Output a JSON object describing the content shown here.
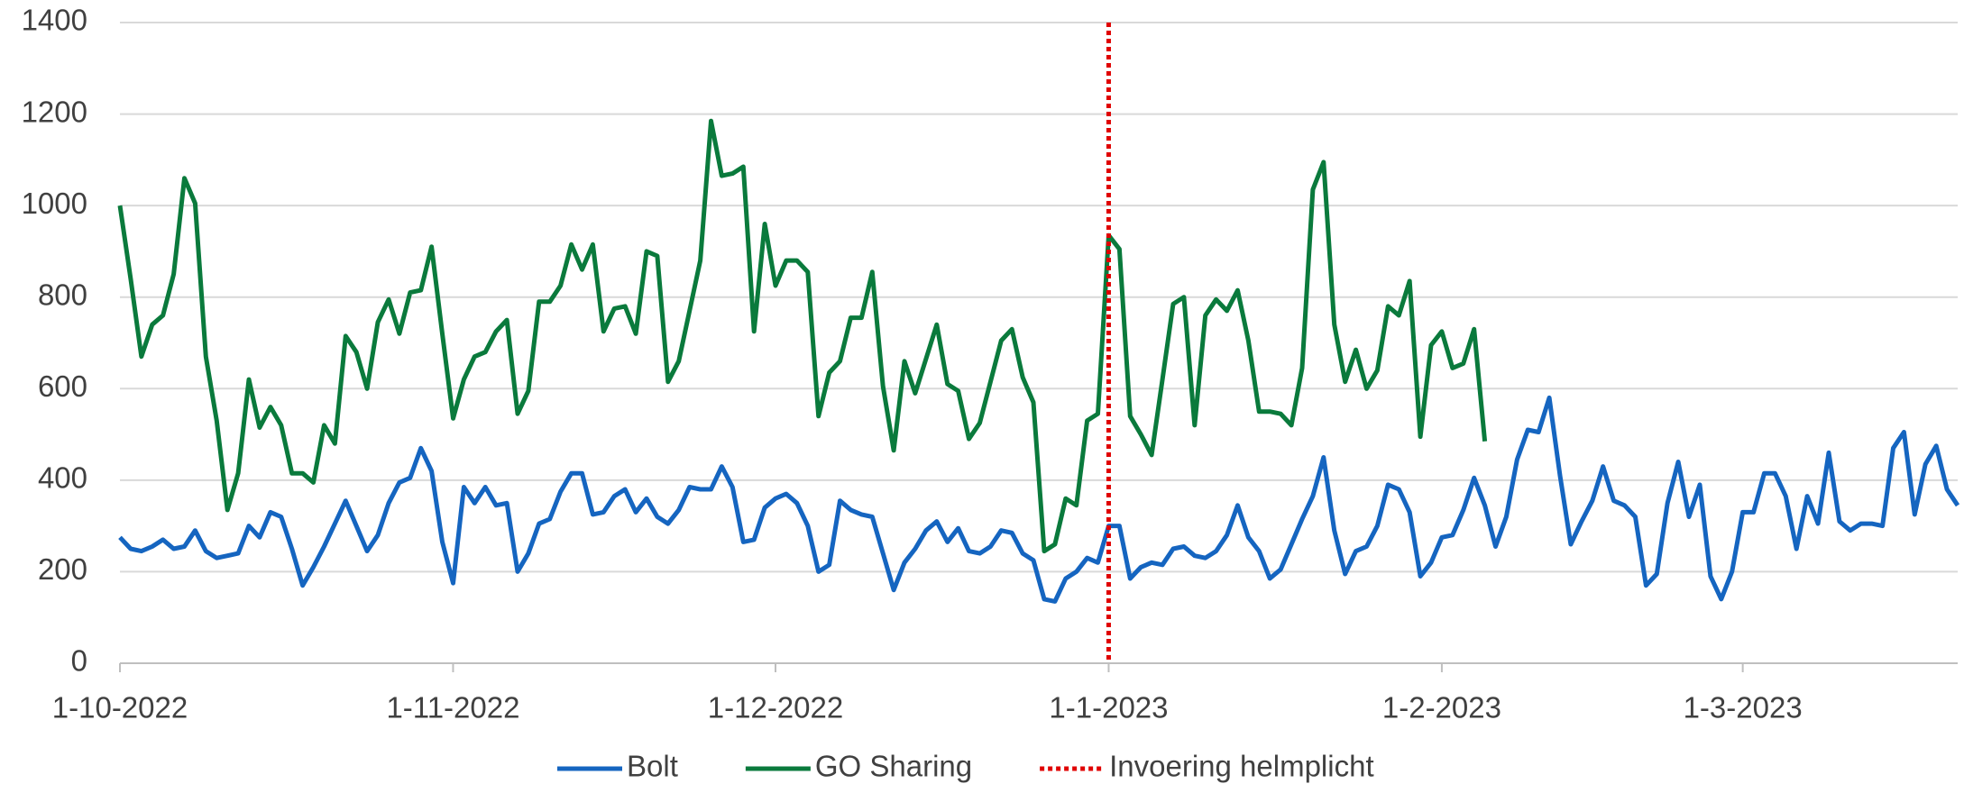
{
  "chart_data": {
    "type": "line",
    "categories": [
      "1-10-2022",
      null,
      null,
      null,
      null,
      null,
      null,
      null,
      null,
      null,
      null,
      null,
      null,
      null,
      null,
      null,
      null,
      null,
      null,
      null,
      null,
      null,
      null,
      null,
      null,
      null,
      null,
      null,
      null,
      null,
      null,
      "1-11-2022",
      null,
      null,
      null,
      null,
      null,
      null,
      null,
      null,
      null,
      null,
      null,
      null,
      null,
      null,
      null,
      null,
      null,
      null,
      null,
      null,
      null,
      null,
      null,
      null,
      null,
      null,
      null,
      null,
      null,
      "1-12-2022",
      null,
      null,
      null,
      null,
      null,
      null,
      null,
      null,
      null,
      null,
      null,
      null,
      null,
      null,
      null,
      null,
      null,
      null,
      null,
      null,
      null,
      null,
      null,
      null,
      null,
      null,
      null,
      null,
      null,
      null,
      "1-1-2023",
      null,
      null,
      null,
      null,
      null,
      null,
      null,
      null,
      null,
      null,
      null,
      null,
      null,
      null,
      null,
      null,
      null,
      null,
      null,
      null,
      null,
      null,
      null,
      null,
      null,
      null,
      null,
      null,
      null,
      null,
      "1-2-2023",
      null,
      null,
      null,
      null,
      null,
      null,
      null,
      null,
      null,
      null,
      null,
      null,
      null,
      null,
      null,
      null,
      null,
      null,
      null,
      null,
      null,
      null,
      null,
      null,
      null,
      null,
      null,
      "1-3-2023",
      null,
      null,
      null,
      null,
      null,
      null,
      null,
      null,
      null,
      null,
      null,
      null,
      null,
      null,
      null,
      null,
      null,
      null,
      null,
      null
    ],
    "series": [
      {
        "name": "Bolt",
        "color": "#1565c0",
        "values": [
          275,
          250,
          245,
          255,
          270,
          250,
          255,
          290,
          245,
          230,
          235,
          240,
          300,
          275,
          330,
          320,
          250,
          170,
          210,
          255,
          305,
          355,
          300,
          245,
          280,
          350,
          395,
          405,
          470,
          420,
          265,
          175,
          385,
          350,
          385,
          345,
          350,
          200,
          240,
          305,
          315,
          375,
          415,
          415,
          325,
          330,
          365,
          380,
          330,
          360,
          320,
          305,
          335,
          385,
          380,
          380,
          430,
          385,
          265,
          270,
          340,
          360,
          370,
          350,
          300,
          200,
          215,
          355,
          335,
          325,
          320,
          240,
          160,
          220,
          250,
          290,
          310,
          265,
          295,
          245,
          240,
          255,
          290,
          285,
          240,
          225,
          140,
          135,
          185,
          200,
          230,
          220,
          300,
          300,
          185,
          210,
          220,
          215,
          250,
          255,
          235,
          230,
          245,
          280,
          345,
          275,
          245,
          185,
          205,
          260,
          315,
          365,
          450,
          290,
          195,
          245,
          255,
          300,
          390,
          380,
          330,
          190,
          220,
          275,
          280,
          335,
          405,
          345,
          255,
          320,
          445,
          510,
          505,
          580,
          410,
          260,
          310,
          355,
          430,
          355,
          345,
          320,
          170,
          195,
          350,
          440,
          320,
          390,
          190,
          140,
          200,
          330,
          330,
          415,
          415,
          365,
          250,
          365,
          305,
          460,
          310,
          290,
          305,
          305,
          300,
          470,
          505,
          325,
          435,
          475,
          380,
          345
        ]
      },
      {
        "name": "GO Sharing",
        "color": "#0a7a3c",
        "values": [
          1000,
          840,
          670,
          740,
          760,
          850,
          1060,
          1005,
          670,
          530,
          335,
          415,
          620,
          515,
          560,
          520,
          415,
          415,
          395,
          520,
          480,
          715,
          680,
          600,
          745,
          795,
          720,
          810,
          815,
          910,
          720,
          535,
          620,
          670,
          680,
          725,
          750,
          545,
          595,
          790,
          790,
          825,
          915,
          860,
          915,
          725,
          775,
          780,
          720,
          900,
          890,
          615,
          660,
          770,
          880,
          1185,
          1065,
          1070,
          1085,
          725,
          960,
          825,
          880,
          880,
          855,
          540,
          635,
          660,
          755,
          755,
          855,
          605,
          465,
          660,
          590,
          665,
          740,
          610,
          595,
          490,
          525,
          615,
          705,
          730,
          625,
          570,
          245,
          260,
          360,
          345,
          530,
          545,
          935,
          905,
          540,
          500,
          455,
          620,
          785,
          800,
          520,
          760,
          795,
          770,
          815,
          705,
          550,
          550,
          545,
          520,
          645,
          1035,
          1095,
          740,
          615,
          685,
          600,
          640,
          780,
          760,
          835,
          495,
          695,
          725,
          645,
          655,
          730,
          485,
          null,
          null,
          null,
          null,
          null,
          null,
          null,
          null,
          null,
          null,
          null,
          null,
          null,
          null,
          null,
          null,
          null,
          null,
          null,
          null,
          null,
          null,
          null,
          null,
          null,
          null,
          null,
          null,
          null,
          null,
          null,
          null,
          null,
          null,
          null,
          null,
          null,
          null,
          null,
          null,
          null,
          null,
          null,
          null
        ]
      }
    ],
    "annotations": [
      {
        "label": "Invoering helmplicht",
        "x": "1-1-2023",
        "color": "#e00000"
      }
    ],
    "ylim": [
      0,
      1400
    ],
    "yticks": [
      0,
      200,
      400,
      600,
      800,
      1000,
      1200,
      1400
    ],
    "grid": true,
    "legend": "bottom"
  }
}
